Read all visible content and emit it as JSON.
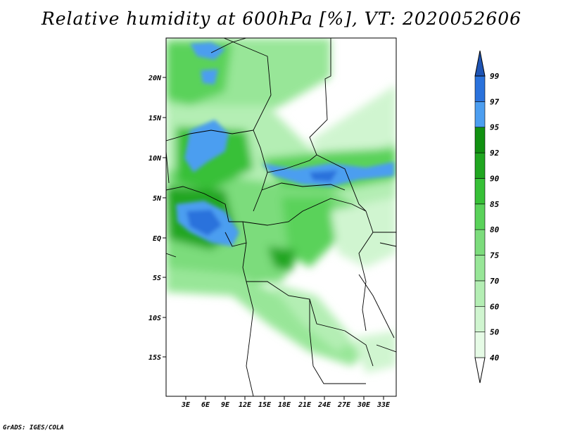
{
  "title": "Relative humidity at 600hPa [%], VT: 2020052606",
  "credit": "GrADS: IGES/COLA",
  "map": {
    "lat_labels": [
      "20N",
      "15N",
      "10N",
      "5N",
      "EQ",
      "5S",
      "10S",
      "15S"
    ],
    "lon_labels": [
      "3E",
      "6E",
      "9E",
      "12E",
      "15E",
      "18E",
      "21E",
      "24E",
      "27E",
      "30E",
      "33E"
    ]
  },
  "colorbar": {
    "levels": [
      "40",
      "50",
      "60",
      "70",
      "75",
      "80",
      "85",
      "90",
      "92",
      "95",
      "97",
      "99"
    ],
    "colors": [
      "#ffffff",
      "#e6fbe6",
      "#d0f5d0",
      "#b4eeb4",
      "#98e698",
      "#7cdc7c",
      "#5ad25a",
      "#37c037",
      "#20a620",
      "#119011",
      "#4c9ef0",
      "#2a72dc",
      "#1e54b4"
    ]
  }
}
